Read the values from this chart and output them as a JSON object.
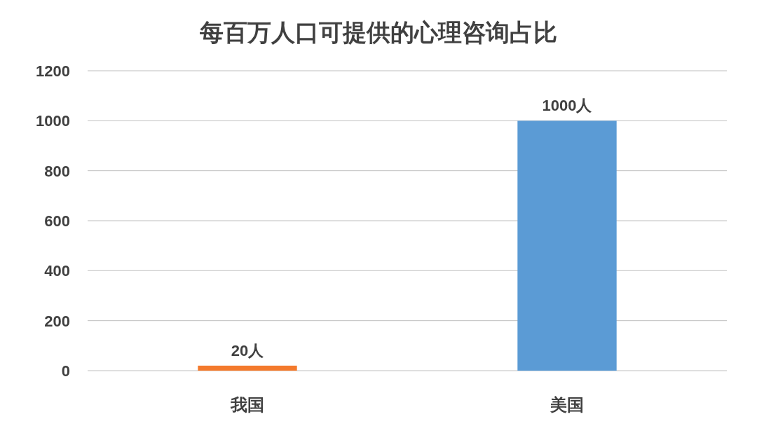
{
  "chart_data": {
    "type": "bar",
    "title": "每百万人口可提供的心理咨询占比",
    "categories": [
      "我国",
      "美国"
    ],
    "values": [
      20,
      1000
    ],
    "colors": [
      "#f47a2c",
      "#5b9bd5"
    ],
    "value_labels": [
      "20人",
      "1000人"
    ],
    "ylim": [
      0,
      1200
    ],
    "yticks": [
      0,
      200,
      400,
      600,
      800,
      1000,
      1200
    ],
    "grid": "y"
  }
}
